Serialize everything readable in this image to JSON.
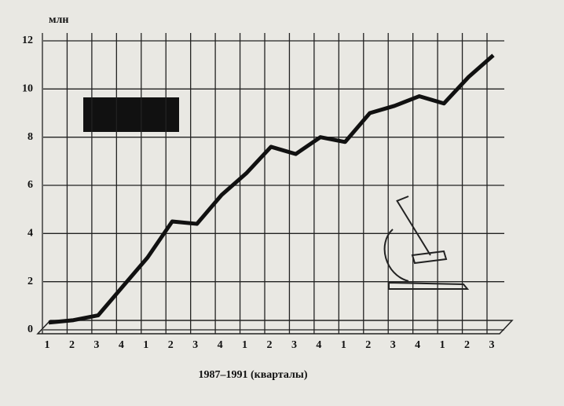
{
  "chart_data": {
    "type": "line",
    "y_unit": "млн",
    "x_label": "1987–1991 (кварталы)",
    "categories": [
      "1",
      "2",
      "3",
      "4",
      "1",
      "2",
      "3",
      "4",
      "1",
      "2",
      "3",
      "4",
      "1",
      "2",
      "3",
      "4",
      "1",
      "2",
      "3"
    ],
    "values": [
      0.3,
      0.4,
      0.6,
      1.8,
      3.0,
      4.5,
      4.4,
      5.6,
      6.5,
      7.6,
      7.3,
      8.0,
      7.8,
      9.0,
      9.3,
      9.7,
      9.4,
      10.5,
      11.4
    ],
    "color": "#111111",
    "ylim": [
      0,
      12
    ],
    "yticks": [
      0,
      2,
      4,
      6,
      8,
      10,
      12
    ],
    "grid": true
  }
}
